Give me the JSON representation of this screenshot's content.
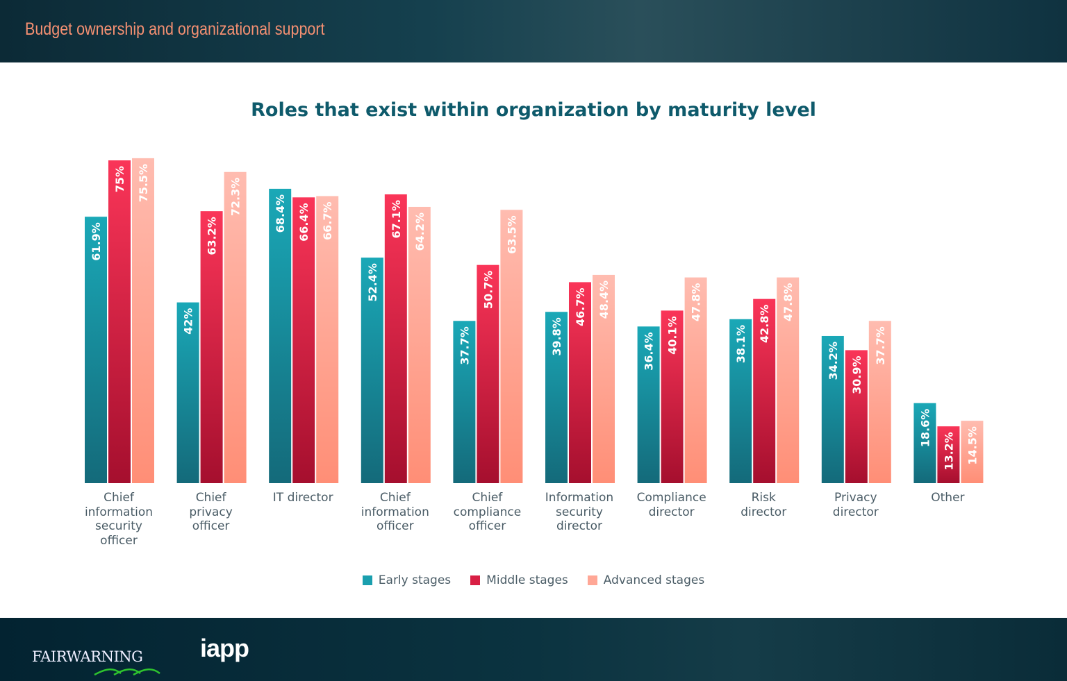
{
  "header": {
    "title": "Budget ownership and organizational support"
  },
  "footer": {
    "logo_fairwarning": "FairWarning",
    "logo_iapp": "iapp"
  },
  "colors": {
    "early": "#1a9fae",
    "middle": "#e62a4e",
    "advanced": "#ffa796",
    "title": "#0e5a6b",
    "header_title": "#f59072"
  },
  "chart_data": {
    "type": "bar",
    "title": "Roles that exist within organization by maturity level",
    "categories": [
      "Chief information security officer",
      "Chief privacy officer",
      "IT director",
      "Chief information officer",
      "Chief compliance officer",
      "Information security director",
      "Compliance director",
      "Risk director",
      "Privacy director",
      "Other"
    ],
    "series": [
      {
        "name": "Early stages",
        "values": [
          61.9,
          42,
          68.4,
          52.4,
          37.7,
          39.8,
          36.4,
          38.1,
          34.2,
          18.6
        ],
        "labels": [
          "61.9%",
          "42%",
          "68.4%",
          "52.4%",
          "37.7%",
          "39.8%",
          "36.4%",
          "38.1%",
          "34.2%",
          "18.6%"
        ]
      },
      {
        "name": "Middle stages",
        "values": [
          75,
          63.2,
          66.4,
          67.1,
          50.7,
          46.7,
          40.1,
          42.8,
          30.9,
          13.2
        ],
        "labels": [
          "75%",
          "63.2%",
          "66.4%",
          "67.1%",
          "50.7%",
          "46.7%",
          "40.1%",
          "42.8%",
          "30.9%",
          "13.2%"
        ]
      },
      {
        "name": "Advanced stages",
        "values": [
          75.5,
          72.3,
          66.7,
          64.2,
          63.5,
          48.4,
          47.8,
          47.8,
          37.7,
          14.5
        ],
        "labels": [
          "75.5%",
          "72.3%",
          "66.7%",
          "64.2%",
          "63.5%",
          "48.4%",
          "47.8%",
          "47.8%",
          "37.7%",
          "14.5%"
        ]
      }
    ],
    "ylim": [
      0,
      80
    ],
    "grid": false,
    "legend": "bottom"
  }
}
